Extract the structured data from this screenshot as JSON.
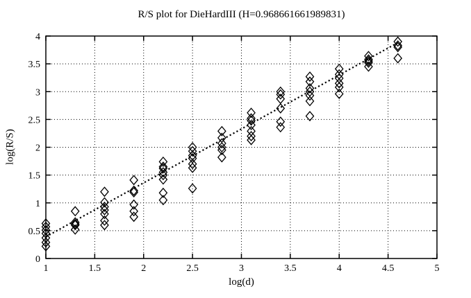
{
  "chart_data": {
    "type": "scatter",
    "title": "R/S plot for DieHardIII (H=0.968661661989831)",
    "xlabel": "log(d)",
    "ylabel": "log(R/S)",
    "hurst_H": 0.968661661989831,
    "xlim": [
      1,
      5
    ],
    "ylim": [
      0,
      4
    ],
    "xticks": [
      1,
      1.5,
      2,
      2.5,
      3,
      3.5,
      4,
      4.5,
      5
    ],
    "xtick_labels": [
      "1",
      "1.5",
      "2",
      "2.5",
      "3",
      "3.5",
      "4",
      "4.5",
      "5"
    ],
    "yticks": [
      0,
      0.5,
      1,
      1.5,
      2,
      2.5,
      3,
      3.5,
      4
    ],
    "ytick_labels": [
      "0",
      "0.5",
      "1",
      "1.5",
      "2",
      "2.5",
      "3",
      "3.5",
      "4"
    ],
    "grid": "dotted",
    "legend": "none",
    "marker": "open-diamond",
    "colors": {
      "foreground": "#000000",
      "background": "#ffffff"
    },
    "points_by_logd": [
      {
        "x": 1.0,
        "log_rs": [
          0.63,
          0.57,
          0.51,
          0.45,
          0.37,
          0.29,
          0.22
        ]
      },
      {
        "x": 1.3,
        "log_rs": [
          0.85,
          0.65,
          0.62,
          0.6,
          0.52
        ]
      },
      {
        "x": 1.6,
        "log_rs": [
          1.2,
          1.01,
          0.93,
          0.87,
          0.8,
          0.68,
          0.6
        ]
      },
      {
        "x": 1.9,
        "log_rs": [
          1.41,
          1.22,
          1.19,
          0.97,
          0.85,
          0.75
        ]
      },
      {
        "x": 2.2,
        "log_rs": [
          1.74,
          1.65,
          1.62,
          1.55,
          1.5,
          1.42,
          1.18,
          1.05
        ]
      },
      {
        "x": 2.5,
        "log_rs": [
          2.0,
          1.93,
          1.85,
          1.8,
          1.7,
          1.63,
          1.26
        ]
      },
      {
        "x": 2.8,
        "log_rs": [
          2.29,
          2.17,
          2.07,
          2.0,
          1.95,
          1.82
        ]
      },
      {
        "x": 3.1,
        "log_rs": [
          2.62,
          2.52,
          2.48,
          2.4,
          2.29,
          2.2,
          2.13
        ]
      },
      {
        "x": 3.4,
        "log_rs": [
          3.0,
          2.95,
          2.87,
          2.7,
          2.46,
          2.36
        ]
      },
      {
        "x": 3.7,
        "log_rs": [
          3.27,
          3.18,
          3.06,
          3.0,
          2.93,
          2.83,
          2.56
        ]
      },
      {
        "x": 4.0,
        "log_rs": [
          3.41,
          3.31,
          3.24,
          3.15,
          3.08,
          2.96
        ]
      },
      {
        "x": 4.3,
        "log_rs": [
          3.64,
          3.58,
          3.55,
          3.52,
          3.45
        ]
      },
      {
        "x": 4.6,
        "log_rs": [
          3.9,
          3.83,
          3.8,
          3.6
        ]
      }
    ],
    "trendline": {
      "style": "dotted",
      "x1": 1.0,
      "y1": 0.39,
      "x2": 4.62,
      "y2": 3.9
    }
  }
}
